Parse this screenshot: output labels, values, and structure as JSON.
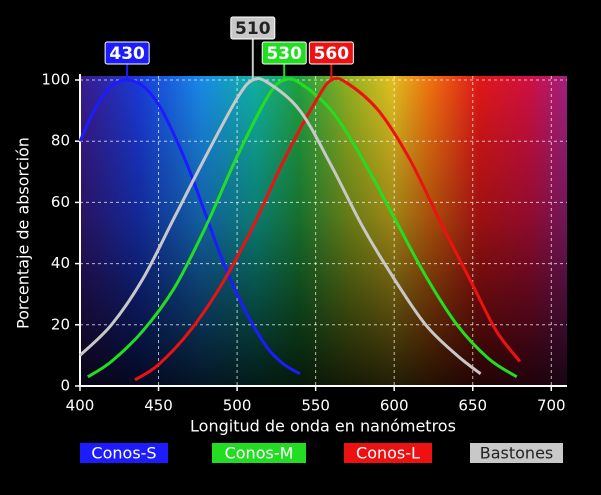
{
  "chart_data": {
    "type": "line",
    "x_label": "Longitud de onda en nanómetros",
    "y_label": "Porcentaje de absorción",
    "xlim": [
      400,
      710
    ],
    "ylim": [
      0,
      100
    ],
    "xticks": [
      400,
      450,
      500,
      550,
      600,
      650,
      700
    ],
    "yticks": [
      0,
      20,
      40,
      60,
      80,
      100
    ],
    "grid": true,
    "legend": "bottom",
    "series": [
      {
        "name": "Conos-S",
        "color": "#1c1cff",
        "x": [
          400,
          410,
          420,
          430,
          440,
          450,
          460,
          470,
          480,
          490,
          500,
          510,
          520,
          530,
          540
        ],
        "values": [
          80,
          91,
          98,
          100,
          98,
          92,
          82,
          70,
          56,
          42,
          30,
          20,
          12,
          7,
          4
        ]
      },
      {
        "name": "Conos-M",
        "color": "#22dd22",
        "x": [
          405,
          420,
          440,
          460,
          480,
          500,
          520,
          530,
          540,
          560,
          580,
          600,
          620,
          640,
          660,
          678
        ],
        "values": [
          3,
          8,
          18,
          32,
          52,
          75,
          95,
          100,
          99,
          90,
          74,
          55,
          36,
          20,
          9,
          3
        ]
      },
      {
        "name": "Conos-L",
        "color": "#ee1111",
        "x": [
          435,
          450,
          470,
          490,
          510,
          530,
          550,
          560,
          570,
          590,
          610,
          630,
          650,
          665,
          680
        ],
        "values": [
          2,
          7,
          18,
          33,
          52,
          74,
          93,
          100,
          99,
          90,
          74,
          53,
          33,
          18,
          8
        ]
      },
      {
        "name": "Bastones",
        "color": "#c8c8c8",
        "x": [
          400,
          420,
          440,
          460,
          480,
          500,
          510,
          520,
          540,
          560,
          580,
          600,
          620,
          640,
          655
        ],
        "values": [
          10,
          20,
          35,
          55,
          75,
          94,
          100,
          99,
          90,
          72,
          52,
          35,
          20,
          10,
          4
        ]
      }
    ],
    "annotations": [
      {
        "x": 430,
        "color": "#1c1cff"
      },
      {
        "x": 510,
        "color": "#c8c8c8"
      },
      {
        "x": 530,
        "color": "#22dd22"
      },
      {
        "x": 560,
        "color": "#ee1111"
      }
    ]
  }
}
